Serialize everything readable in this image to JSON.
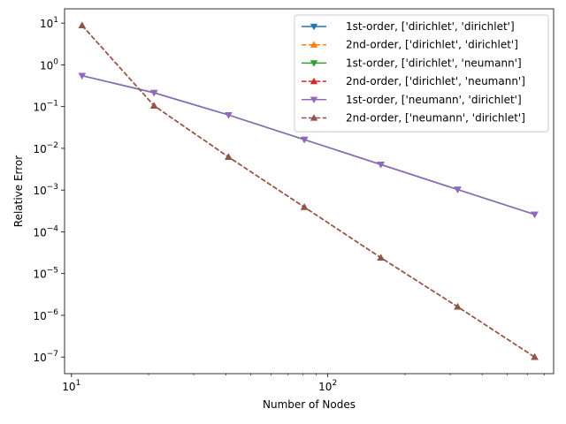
{
  "chart_data": {
    "type": "line",
    "xscale": "log",
    "yscale": "log",
    "xlabel": "Number of Nodes",
    "ylabel": "Relative Error",
    "xlim": [
      9.4,
      760
    ],
    "ylim": [
      4e-08,
      22
    ],
    "legend_position": "top-right",
    "grid": false,
    "x": [
      11,
      21,
      41,
      81,
      161,
      321,
      641
    ],
    "x_ticks": [
      {
        "value": 10,
        "base": "10",
        "exp": "1"
      },
      {
        "value": 100,
        "base": "10",
        "exp": "2"
      }
    ],
    "y_ticks": [
      {
        "value": 10,
        "base": "10",
        "exp": "1"
      },
      {
        "value": 1,
        "base": "10",
        "exp": "0"
      },
      {
        "value": 0.1,
        "base": "10",
        "exp": "−1"
      },
      {
        "value": 0.01,
        "base": "10",
        "exp": "−2"
      },
      {
        "value": 0.001,
        "base": "10",
        "exp": "−3"
      },
      {
        "value": 0.0001,
        "base": "10",
        "exp": "−4"
      },
      {
        "value": 1e-05,
        "base": "10",
        "exp": "−5"
      },
      {
        "value": 1e-06,
        "base": "10",
        "exp": "−6"
      },
      {
        "value": 1e-07,
        "base": "10",
        "exp": "−7"
      }
    ],
    "series": [
      {
        "name": "1st-order, ['dirichlet', 'dirichlet']",
        "color": "#1f77b4",
        "dash": "solid",
        "marker": "triangle-down",
        "values": [
          0.55,
          0.215,
          0.063,
          0.0162,
          0.0041,
          0.00103,
          0.00026
        ]
      },
      {
        "name": "2nd-order, ['dirichlet', 'dirichlet']",
        "color": "#ff7f0e",
        "dash": "dashed",
        "marker": "triangle-up",
        "values": [
          8.8,
          0.105,
          0.0062,
          0.00039,
          2.4e-05,
          1.6e-06,
          1e-07
        ]
      },
      {
        "name": "1st-order, ['dirichlet', 'neumann']",
        "color": "#2ca02c",
        "dash": "solid",
        "marker": "triangle-down",
        "values": [
          0.55,
          0.215,
          0.063,
          0.0162,
          0.0041,
          0.00103,
          0.00026
        ]
      },
      {
        "name": "2nd-order, ['dirichlet', 'neumann']",
        "color": "#d62728",
        "dash": "dashed",
        "marker": "triangle-up",
        "values": [
          8.8,
          0.105,
          0.0062,
          0.00039,
          2.4e-05,
          1.6e-06,
          1e-07
        ]
      },
      {
        "name": "1st-order, ['neumann', 'dirichlet']",
        "color": "#9467bd",
        "dash": "solid",
        "marker": "triangle-down",
        "values": [
          0.55,
          0.215,
          0.063,
          0.0162,
          0.0041,
          0.00103,
          0.00026
        ]
      },
      {
        "name": "2nd-order, ['neumann', 'dirichlet']",
        "color": "#8c564b",
        "dash": "dashed",
        "marker": "triangle-up",
        "values": [
          8.8,
          0.105,
          0.0062,
          0.00039,
          2.4e-05,
          1.6e-06,
          1e-07
        ]
      }
    ]
  }
}
